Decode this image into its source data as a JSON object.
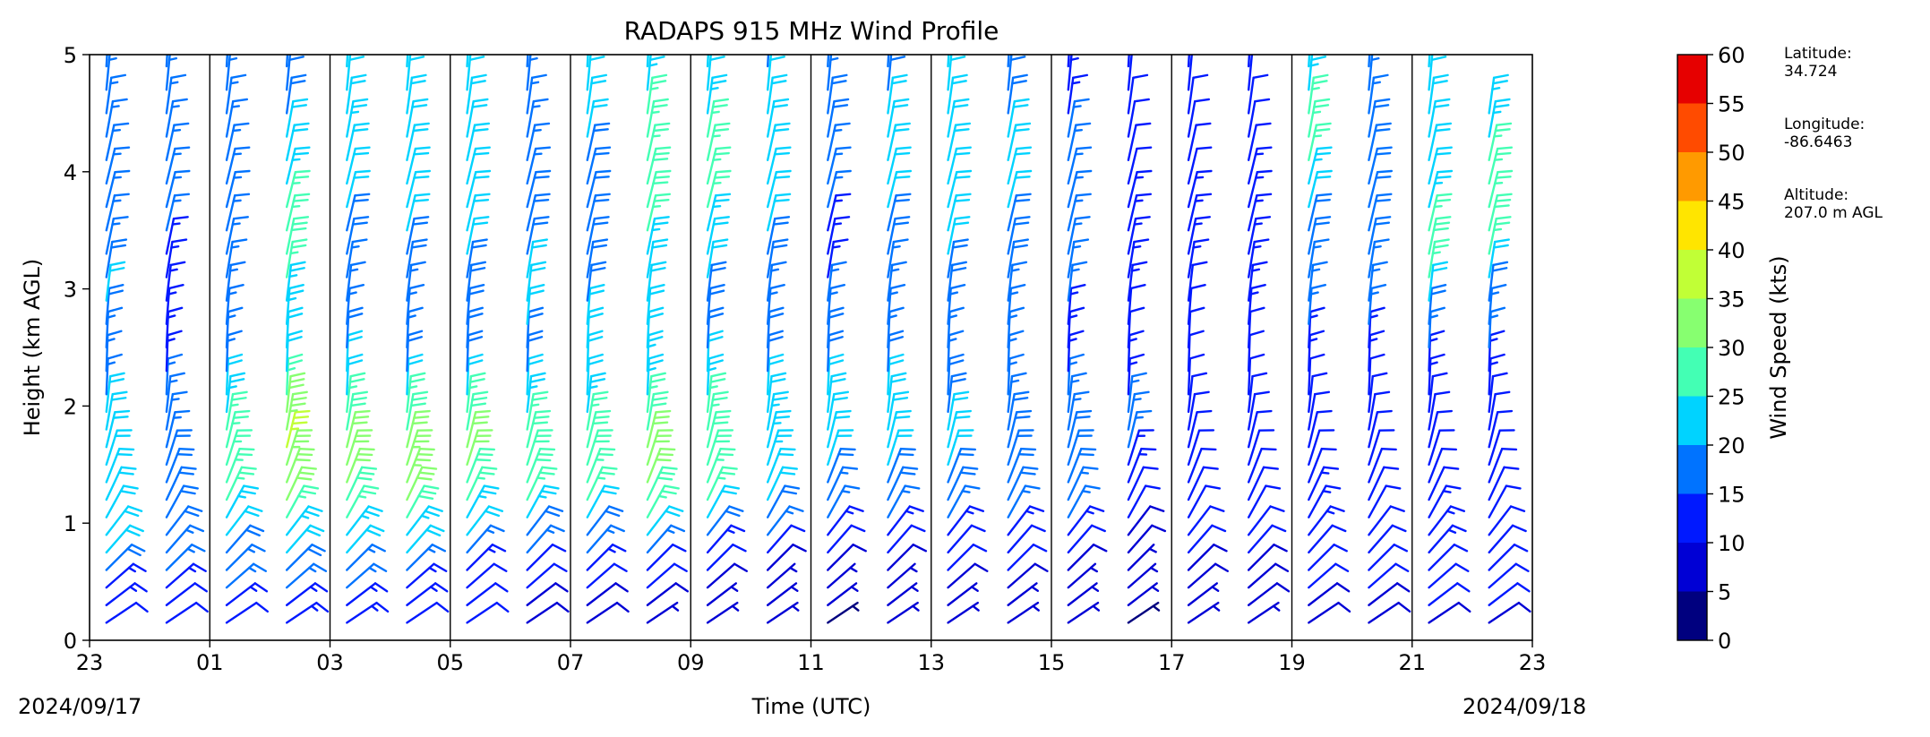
{
  "chart_data": {
    "type": "wind_barb_profile",
    "title": "RADAPS 915 MHz Wind Profile",
    "xlabel": "Time (UTC)",
    "ylabel": "Height (km AGL)",
    "x_tick_labels": [
      "23",
      "01",
      "03",
      "05",
      "07",
      "09",
      "11",
      "13",
      "15",
      "17",
      "19",
      "21",
      "23"
    ],
    "x_range_hours": [
      0,
      24
    ],
    "ylim": [
      0,
      5
    ],
    "y_ticks": [
      0,
      1,
      2,
      3,
      4,
      5
    ],
    "start_date_label": "2024/09/17",
    "end_date_label": "2024/09/18",
    "vertical_gridlines": true,
    "colorbar": {
      "label": "Wind Speed (kts)",
      "ticks": [
        0,
        5,
        10,
        15,
        20,
        25,
        30,
        35,
        40,
        45,
        50,
        55,
        60
      ],
      "colors": [
        "#00007f",
        "#0000d5",
        "#0019ff",
        "#0073ff",
        "#00d3ff",
        "#43ffb4",
        "#87ff70",
        "#c1ff36",
        "#ffe500",
        "#ff9a00",
        "#ff4b00",
        "#e60000",
        "#7f0000"
      ]
    },
    "station": {
      "latitude_label": "Latitude:",
      "latitude": "34.724",
      "longitude_label": "Longitude:",
      "longitude": "-86.6463",
      "altitude_label": "Altitude:",
      "altitude": "207.0 m AGL"
    },
    "profile_times_hours": [
      0.0,
      1.0,
      2.0,
      3.0,
      4.0,
      5.0,
      6.0,
      7.0,
      8.0,
      9.0,
      10.0,
      11.0,
      12.0,
      13.0,
      14.0,
      15.0,
      16.0,
      17.0,
      18.0,
      19.0,
      20.0,
      21.0,
      22.0,
      23.0
    ],
    "profile_top_km": [
      5.0,
      5.0,
      5.0,
      5.0,
      5.0,
      5.0,
      5.0,
      5.0,
      5.0,
      5.0,
      5.0,
      5.0,
      5.0,
      5.0,
      5.0,
      5.0,
      5.0,
      5.0,
      5.0,
      5.0,
      5.0,
      5.0,
      5.0,
      4.5
    ],
    "profile_levels_km": [
      0.15,
      0.3,
      0.45,
      0.6,
      0.75,
      0.9,
      1.05,
      1.2,
      1.35,
      1.5,
      1.65,
      1.8,
      1.95,
      2.1,
      2.3,
      2.5,
      2.7,
      2.9,
      3.1,
      3.3,
      3.5,
      3.7,
      3.9,
      4.1,
      4.3,
      4.5,
      4.7,
      4.9
    ],
    "speed_profile_kts": [
      [
        12,
        13,
        14,
        18,
        20,
        21,
        22,
        22,
        22,
        21,
        20,
        20,
        22,
        17,
        16,
        17,
        19,
        20,
        18,
        17,
        17,
        17,
        16,
        16,
        16,
        15,
        16,
        17
      ],
      [
        11,
        12,
        13,
        15,
        17,
        18,
        18,
        19,
        19,
        18,
        17,
        17,
        16,
        15,
        14,
        14,
        14,
        14,
        14,
        14,
        15,
        15,
        16,
        17,
        17,
        16,
        16,
        17
      ],
      [
        12,
        13,
        15,
        17,
        19,
        22,
        24,
        26,
        27,
        27,
        26,
        26,
        24,
        20,
        17,
        16,
        16,
        16,
        16,
        15,
        15,
        15,
        15,
        15,
        16,
        16,
        16,
        15
      ],
      [
        13,
        14,
        15,
        18,
        21,
        24,
        27,
        30,
        32,
        34,
        35,
        34,
        30,
        25,
        22,
        22,
        23,
        24,
        26,
        28,
        27,
        25,
        24,
        22,
        20,
        19,
        18,
        17
      ],
      [
        13,
        14,
        15,
        17,
        20,
        23,
        26,
        28,
        30,
        31,
        30,
        28,
        26,
        22,
        20,
        18,
        17,
        17,
        17,
        18,
        19,
        20,
        21,
        22,
        23,
        22,
        21,
        20
      ],
      [
        12,
        13,
        14,
        17,
        20,
        24,
        29,
        32,
        34,
        33,
        31,
        28,
        25,
        20,
        18,
        17,
        16,
        17,
        18,
        19,
        20,
        20,
        20,
        21,
        21,
        21,
        22,
        22
      ],
      [
        10,
        11,
        12,
        14,
        17,
        20,
        24,
        27,
        29,
        30,
        30,
        28,
        25,
        21,
        19,
        18,
        18,
        18,
        19,
        21,
        22,
        22,
        22,
        21,
        20,
        21,
        22,
        24
      ],
      [
        8,
        9,
        10,
        12,
        15,
        19,
        23,
        26,
        28,
        29,
        29,
        27,
        24,
        20,
        19,
        19,
        20,
        20,
        20,
        19,
        19,
        18,
        17,
        17,
        17,
        17,
        17,
        18
      ],
      [
        8,
        9,
        11,
        13,
        16,
        19,
        22,
        25,
        27,
        28,
        28,
        27,
        24,
        21,
        20,
        20,
        20,
        19,
        19,
        18,
        18,
        18,
        18,
        19,
        20,
        20,
        21,
        21
      ],
      [
        7,
        8,
        10,
        12,
        16,
        21,
        25,
        28,
        30,
        31,
        30,
        28,
        26,
        24,
        23,
        22,
        21,
        21,
        22,
        24,
        26,
        28,
        28,
        27,
        26,
        25,
        24,
        23
      ],
      [
        6,
        7,
        9,
        11,
        14,
        18,
        22,
        25,
        27,
        28,
        28,
        27,
        25,
        23,
        21,
        19,
        18,
        18,
        20,
        22,
        24,
        26,
        27,
        27,
        25,
        23,
        22,
        21
      ],
      [
        5,
        6,
        7,
        9,
        12,
        15,
        18,
        20,
        22,
        23,
        23,
        23,
        22,
        20,
        19,
        18,
        17,
        17,
        18,
        19,
        20,
        20,
        21,
        21,
        21,
        20,
        20,
        19
      ],
      [
        4,
        5,
        6,
        8,
        10,
        13,
        15,
        17,
        19,
        20,
        21,
        21,
        21,
        20,
        19,
        18,
        16,
        15,
        14,
        14,
        14,
        15,
        16,
        17,
        18,
        18,
        17,
        16
      ],
      [
        5,
        6,
        7,
        9,
        11,
        13,
        16,
        18,
        19,
        20,
        21,
        21,
        21,
        20,
        18,
        17,
        16,
        16,
        17,
        18,
        19,
        20,
        21,
        21,
        20,
        20,
        19,
        19
      ],
      [
        6,
        7,
        8,
        10,
        12,
        14,
        16,
        18,
        19,
        20,
        20,
        20,
        19,
        18,
        17,
        17,
        17,
        18,
        19,
        20,
        21,
        22,
        22,
        22,
        21,
        21,
        21,
        22
      ],
      [
        6,
        7,
        8,
        10,
        12,
        14,
        16,
        18,
        19,
        19,
        19,
        18,
        17,
        16,
        16,
        16,
        16,
        17,
        18,
        19,
        19,
        20,
        20,
        20,
        20,
        19,
        18,
        18
      ],
      [
        5,
        6,
        7,
        9,
        11,
        13,
        15,
        17,
        18,
        18,
        18,
        17,
        16,
        15,
        14,
        14,
        14,
        15,
        15,
        16,
        16,
        16,
        15,
        15,
        15,
        14,
        14,
        14
      ],
      [
        4,
        5,
        6,
        7,
        8,
        9,
        11,
        12,
        13,
        14,
        15,
        15,
        15,
        14,
        13,
        12,
        12,
        13,
        14,
        14,
        14,
        13,
        12,
        12,
        11,
        11,
        11,
        11
      ],
      [
        6,
        7,
        8,
        9,
        10,
        11,
        12,
        12,
        12,
        12,
        12,
        12,
        11,
        10,
        10,
        10,
        11,
        12,
        13,
        13,
        13,
        13,
        12,
        12,
        11,
        11,
        11,
        11
      ],
      [
        7,
        8,
        9,
        9,
        10,
        11,
        11,
        12,
        12,
        12,
        12,
        12,
        11,
        11,
        11,
        12,
        13,
        13,
        14,
        14,
        14,
        13,
        13,
        12,
        12,
        11,
        11,
        10
      ],
      [
        8,
        9,
        10,
        11,
        12,
        13,
        13,
        13,
        12,
        12,
        12,
        12,
        11,
        12,
        13,
        14,
        15,
        16,
        17,
        18,
        19,
        21,
        23,
        25,
        26,
        25,
        24,
        23
      ],
      [
        8,
        9,
        10,
        11,
        12,
        12,
        12,
        12,
        11,
        11,
        11,
        11,
        11,
        12,
        13,
        14,
        15,
        16,
        17,
        18,
        19,
        19,
        18,
        18,
        18,
        17,
        17,
        17
      ],
      [
        9,
        10,
        11,
        12,
        13,
        13,
        13,
        12,
        12,
        11,
        11,
        11,
        12,
        13,
        14,
        16,
        19,
        22,
        25,
        28,
        26,
        24,
        22,
        21,
        20,
        20,
        20,
        20
      ],
      [
        9,
        10,
        11,
        12,
        12,
        12,
        12,
        12,
        12,
        12,
        12,
        12,
        12,
        13,
        14,
        15,
        16,
        18,
        22,
        26,
        28,
        27,
        26,
        25,
        24,
        23,
        23,
        23
      ]
    ]
  }
}
